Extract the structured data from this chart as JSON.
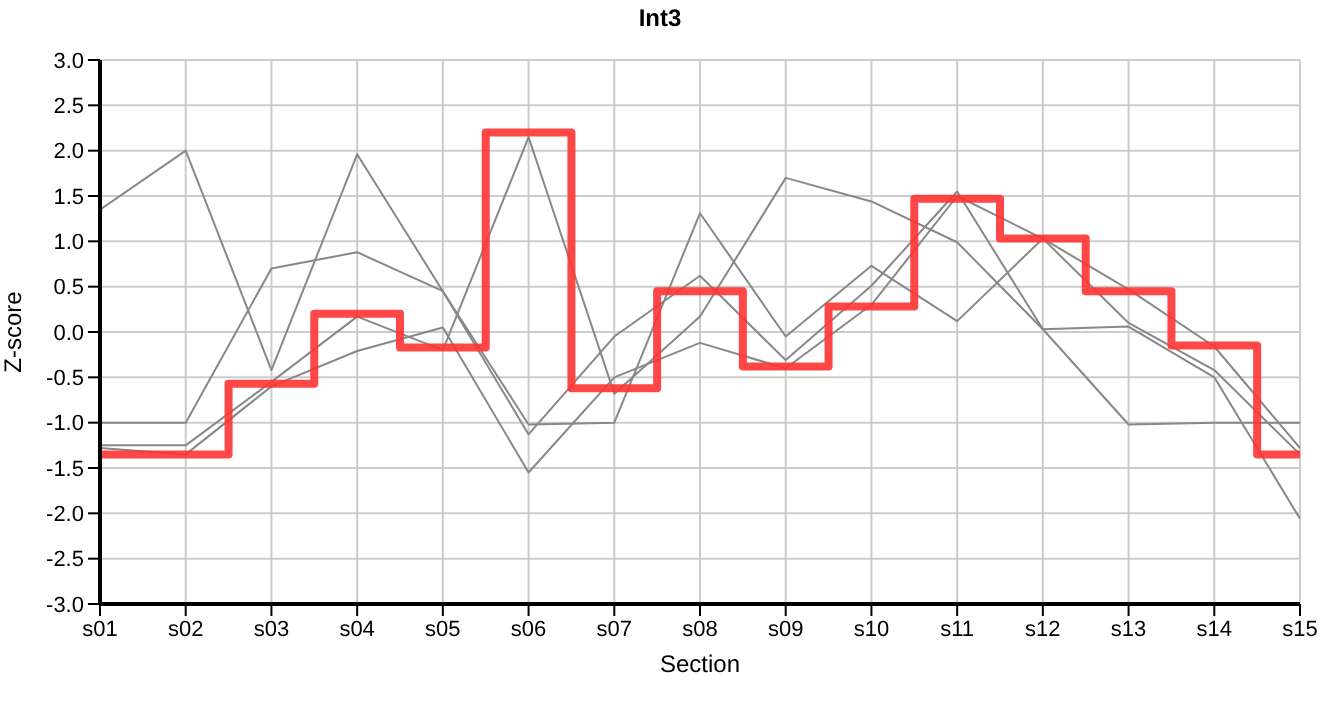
{
  "chart_data": {
    "type": "line",
    "title": "Int3",
    "xlabel": "Section",
    "ylabel": "Z-score",
    "categories": [
      "s01",
      "s02",
      "s03",
      "s04",
      "s05",
      "s06",
      "s07",
      "s08",
      "s09",
      "s10",
      "s11",
      "s12",
      "s13",
      "s14",
      "s15"
    ],
    "series": [
      {
        "color": "#888888",
        "values": [
          1.35,
          2.0,
          -0.42,
          1.96,
          0.45,
          -1.13,
          -0.05,
          0.62,
          -0.31,
          0.51,
          1.55,
          0.03,
          0.06,
          -0.5,
          -2.06
        ]
      },
      {
        "color": "#888888",
        "values": [
          -1.0,
          -1.0,
          0.7,
          0.88,
          0.45,
          -1.02,
          -1.0,
          1.31,
          -0.05,
          0.73,
          0.12,
          1.03,
          0.47,
          -0.16,
          -1.28
        ]
      },
      {
        "color": "#888888",
        "values": [
          -1.25,
          -1.25,
          -0.55,
          0.17,
          -0.2,
          2.15,
          -0.68,
          0.17,
          1.7,
          1.44,
          0.99,
          0.03,
          -1.02,
          -1.0,
          -1.0
        ]
      },
      {
        "color": "#888888",
        "values": [
          -1.28,
          -1.35,
          -0.6,
          -0.21,
          0.05,
          -1.55,
          -0.5,
          -0.12,
          -0.4,
          0.3,
          1.5,
          1.03,
          0.1,
          -0.42,
          -1.35
        ]
      },
      {
        "type": "step",
        "color": "#ff3333",
        "values": [
          -1.35,
          -1.35,
          -0.57,
          0.2,
          -0.17,
          2.2,
          -0.62,
          0.45,
          -0.38,
          0.28,
          1.47,
          1.03,
          0.45,
          -0.15,
          -1.35
        ]
      }
    ],
    "ylim": [
      -3,
      3
    ],
    "yticks": [
      {
        "value": -3,
        "label": "-3.0"
      },
      -2.5,
      {
        "value": -2,
        "label": "-2.0"
      },
      -1.5,
      {
        "value": -1,
        "label": "-1.0"
      },
      -0.5,
      {
        "value": 0,
        "label": "0.0"
      },
      0.5,
      {
        "value": 1,
        "label": "1.0"
      },
      1.5,
      {
        "value": 2,
        "label": "2.0"
      },
      2.5,
      {
        "value": 3,
        "label": "3.0"
      }
    ],
    "grid": true
  }
}
